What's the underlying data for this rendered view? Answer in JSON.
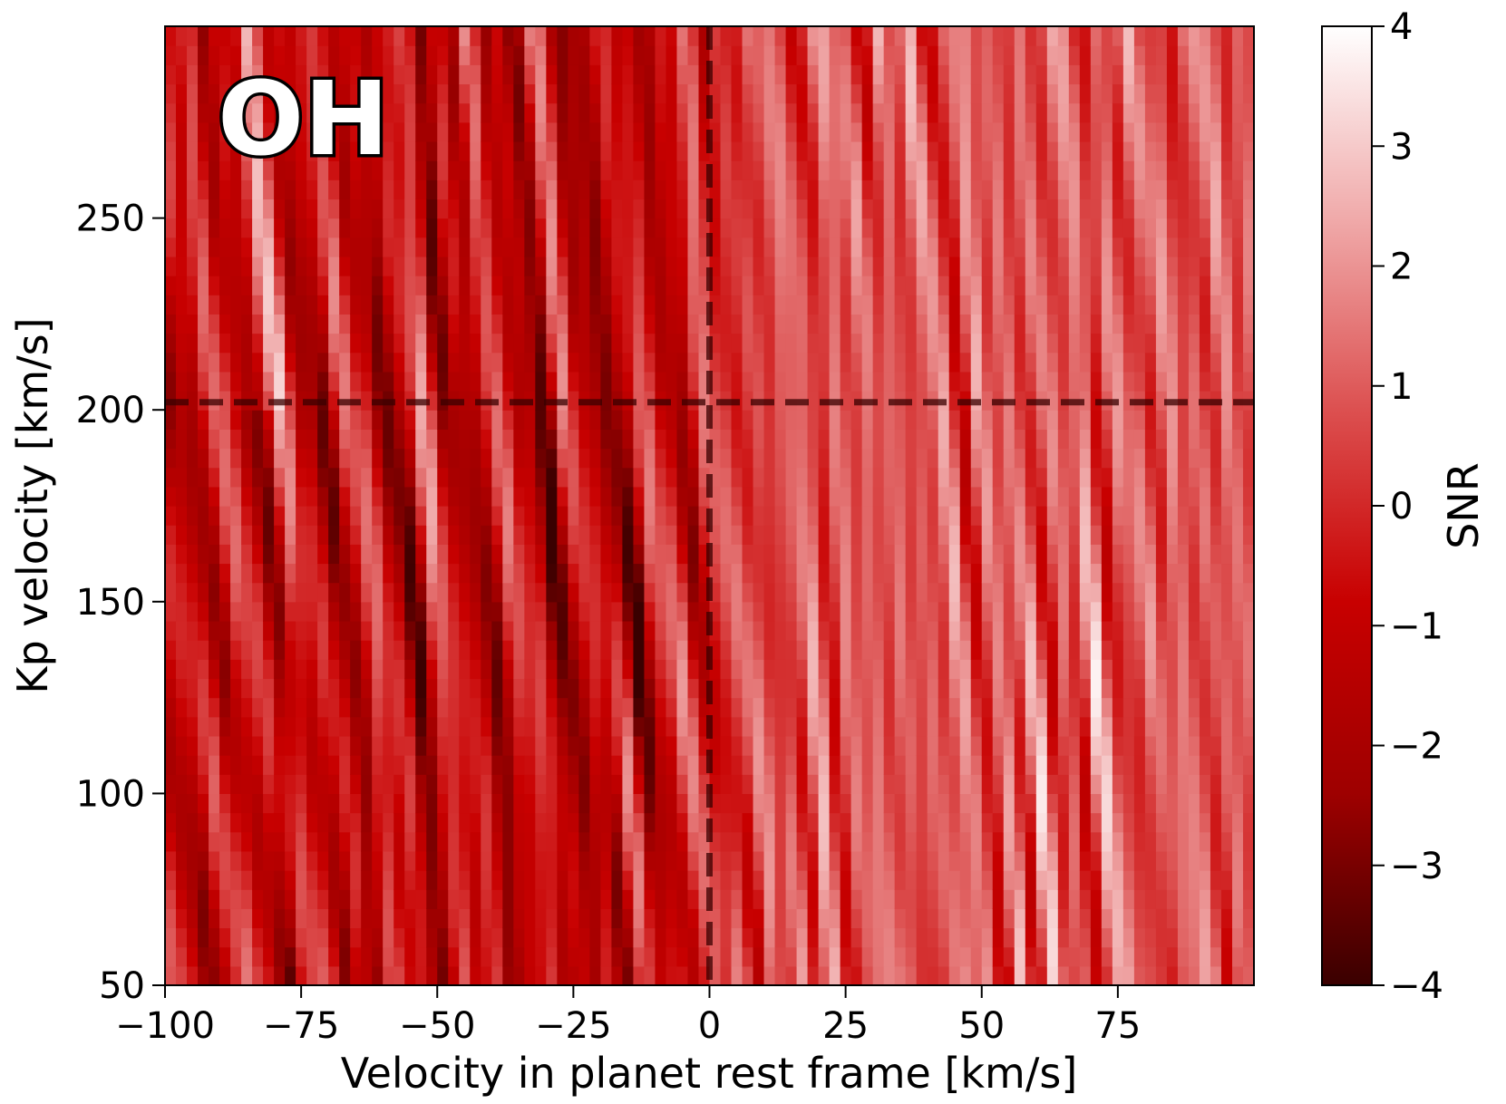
{
  "chart_data": {
    "type": "heatmap",
    "species_label": "OH",
    "xlabel": "Velocity in planet rest frame [km/s]",
    "ylabel": "Kp velocity [km/s]",
    "colorbar_label": "SNR",
    "xlim": [
      -100,
      100
    ],
    "ylim": [
      50,
      300
    ],
    "x_ticks": [
      -100,
      -75,
      -50,
      -25,
      0,
      25,
      50,
      75
    ],
    "x_tick_labels": [
      "−100",
      "−75",
      "−50",
      "−25",
      "0",
      "25",
      "50",
      "75"
    ],
    "y_ticks": [
      50,
      100,
      150,
      200,
      250
    ],
    "y_tick_labels": [
      "50",
      "100",
      "150",
      "200",
      "250"
    ],
    "color_range": [
      -4,
      4
    ],
    "colorbar_ticks": [
      -4,
      -3,
      -2,
      -1,
      0,
      1,
      2,
      3,
      4
    ],
    "colorbar_tick_labels": [
      "−4",
      "−3",
      "−2",
      "−1",
      "0",
      "1",
      "2",
      "3",
      "4"
    ],
    "colormap": [
      "#3a0000",
      "#9e0000",
      "#c80000",
      "#dc5050",
      "#f0aaaa",
      "#ffffff"
    ],
    "marker_vsys": 0,
    "marker_kp": 202,
    "marker_line_color": "#3a0000"
  }
}
